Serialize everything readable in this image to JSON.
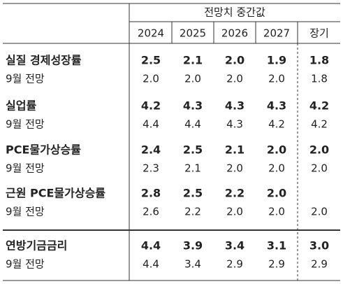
{
  "header": {
    "title": "전망치 중간값",
    "columns": [
      "2024",
      "2025",
      "2026",
      "2027",
      "장기"
    ]
  },
  "rows": [
    {
      "label": "실질 경제성장률",
      "values": [
        "2.5",
        "2.1",
        "2.0",
        "1.9",
        "1.8"
      ]
    },
    {
      "label": "9월 전망",
      "values": [
        "2.0",
        "2.0",
        "2.0",
        "2.0",
        "1.8"
      ]
    },
    {
      "label": "실업률",
      "values": [
        "4.2",
        "4.3",
        "4.3",
        "4.3",
        "4.2"
      ]
    },
    {
      "label": "9월 전망",
      "values": [
        "4.4",
        "4.4",
        "4.3",
        "4.2",
        "4.2"
      ]
    },
    {
      "label": "PCE물가상승률",
      "values": [
        "2.4",
        "2.5",
        "2.1",
        "2.0",
        "2.0"
      ]
    },
    {
      "label": "9월 전망",
      "values": [
        "2.3",
        "2.1",
        "2.0",
        "2.0",
        "2.0"
      ]
    },
    {
      "label": "근원 PCE물가상승률",
      "values": [
        "2.8",
        "2.5",
        "2.2",
        "2.0",
        null
      ]
    },
    {
      "label": "9월 전망",
      "values": [
        "2.6",
        "2.2",
        "2.0",
        "2.0",
        "2.0"
      ]
    },
    {
      "label": "연방기금금리",
      "values": [
        "4.4",
        "3.9",
        "3.4",
        "3.1",
        "3.0"
      ]
    },
    {
      "label": "9월 전망",
      "values": [
        "4.4",
        "3.4",
        "2.9",
        "2.9",
        "2.9"
      ]
    }
  ]
}
